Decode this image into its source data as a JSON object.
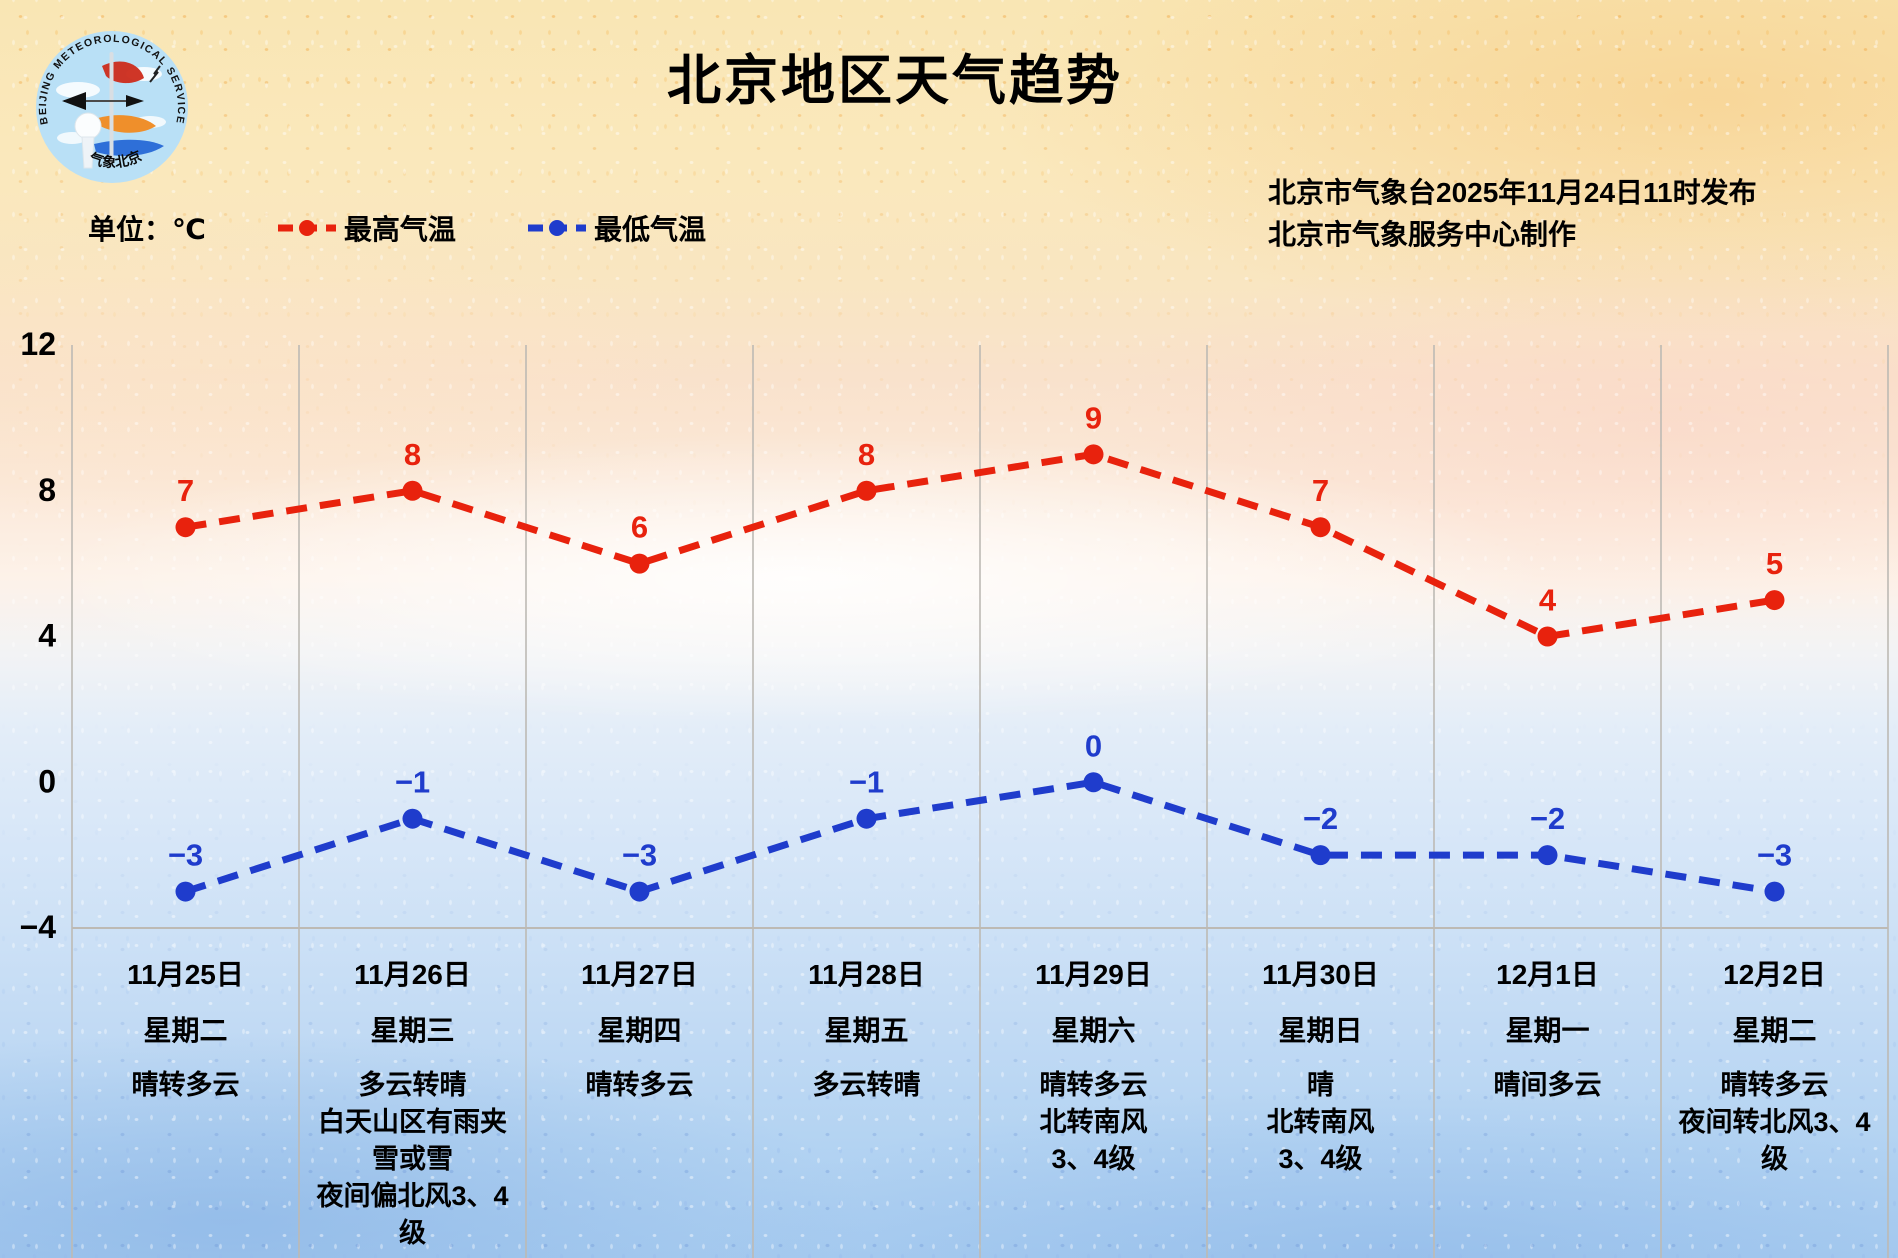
{
  "title": "北京地区天气趋势",
  "logo": {
    "arc_text": "BEIJING  METEOROLOGICAL  SERVICE",
    "bottom_text": "气象北京"
  },
  "meta": {
    "line1": "北京市气象台2025年11月24日11时发布",
    "line2": "北京市气象服务中心制作"
  },
  "legend": {
    "unit_label": "单位：℃",
    "high_label": "最高气温",
    "low_label": "最低气温"
  },
  "colors": {
    "high": "#e8220d",
    "low": "#1f3ccc",
    "grid": "#bdbab4",
    "axis_text": "#000000"
  },
  "chart_data": {
    "type": "line",
    "title": "北京地区天气趋势",
    "unit": "℃",
    "grid": "vertical-day-separators",
    "legend_position": "top-left",
    "y_axis": {
      "ticks": [
        12,
        8,
        4,
        0,
        -4
      ],
      "min": -4,
      "max": 12
    },
    "categories": [
      {
        "date": "11月25日",
        "weekday": "星期二",
        "weather": [
          "晴转多云"
        ]
      },
      {
        "date": "11月26日",
        "weekday": "星期三",
        "weather": [
          "多云转晴",
          "白天山区有雨夹雪或雪",
          "夜间偏北风3、4级"
        ]
      },
      {
        "date": "11月27日",
        "weekday": "星期四",
        "weather": [
          "晴转多云"
        ]
      },
      {
        "date": "11月28日",
        "weekday": "星期五",
        "weather": [
          "多云转晴"
        ]
      },
      {
        "date": "11月29日",
        "weekday": "星期六",
        "weather": [
          "晴转多云",
          "北转南风",
          "3、4级"
        ]
      },
      {
        "date": "11月30日",
        "weekday": "星期日",
        "weather": [
          "晴",
          "北转南风",
          "3、4级"
        ]
      },
      {
        "date": "12月1日",
        "weekday": "星期一",
        "weather": [
          "晴间多云"
        ]
      },
      {
        "date": "12月2日",
        "weekday": "星期二",
        "weather": [
          "晴转多云",
          "夜间转北风3、4级"
        ]
      }
    ],
    "series": [
      {
        "name": "最高气温",
        "color": "#e8220d",
        "values": [
          7,
          8,
          6,
          8,
          9,
          7,
          4,
          5
        ]
      },
      {
        "name": "最低气温",
        "color": "#1f3ccc",
        "values": [
          -3,
          -1,
          -3,
          -1,
          0,
          -2,
          -2,
          -3
        ]
      }
    ]
  }
}
